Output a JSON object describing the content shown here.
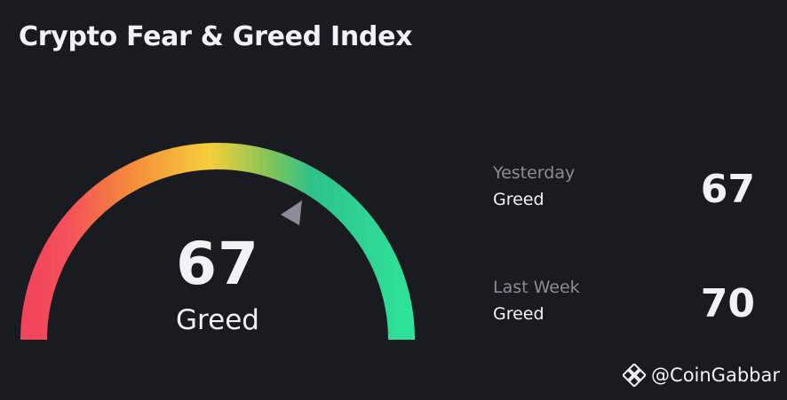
{
  "header": {
    "title": "Crypto Fear & Greed Index"
  },
  "gauge": {
    "value": "67",
    "label": "Greed",
    "min": 0,
    "max": 100,
    "colors": [
      "#f2435c",
      "#f58a3a",
      "#f5c83a",
      "#2dc28a",
      "#2ee49a"
    ],
    "pointer_color": "#8a8d98"
  },
  "stats": {
    "yesterday": {
      "period": "Yesterday",
      "sentiment": "Greed",
      "value": "67"
    },
    "last_week": {
      "period": "Last Week",
      "sentiment": "Greed",
      "value": "70"
    }
  },
  "watermark": {
    "text": "@CoinGabbar",
    "icon": "binance-square-icon"
  }
}
